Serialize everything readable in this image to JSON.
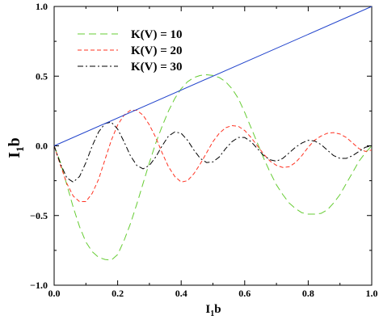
{
  "chart_data": {
    "type": "line",
    "xlabel": {
      "main": "I",
      "sub": "1",
      "tail": "b"
    },
    "ylabel": {
      "main": "I",
      "sub": "1",
      "tail": "b"
    },
    "xlim": [
      0,
      1
    ],
    "ylim": [
      -1,
      1
    ],
    "x_ticks": [
      "0.0",
      "0.2",
      "0.4",
      "0.6",
      "0.8",
      "1.0"
    ],
    "y_ticks": [
      "1.0",
      "0.5",
      "0.0",
      "−0.5",
      "−1.0"
    ],
    "grid": false,
    "legend_position": "top-left",
    "series": [
      {
        "name": "K(V) = 10",
        "color": "#66cc33",
        "dash": "dashed-long",
        "points": [
          [
            0,
            0
          ],
          [
            0.02,
            -0.12
          ],
          [
            0.04,
            -0.28
          ],
          [
            0.06,
            -0.44
          ],
          [
            0.08,
            -0.58
          ],
          [
            0.1,
            -0.69
          ],
          [
            0.12,
            -0.76
          ],
          [
            0.14,
            -0.8
          ],
          [
            0.16,
            -0.815
          ],
          [
            0.18,
            -0.82
          ],
          [
            0.2,
            -0.78
          ],
          [
            0.22,
            -0.68
          ],
          [
            0.24,
            -0.56
          ],
          [
            0.26,
            -0.42
          ],
          [
            0.28,
            -0.27
          ],
          [
            0.3,
            -0.12
          ],
          [
            0.32,
            0.02
          ],
          [
            0.34,
            0.14
          ],
          [
            0.36,
            0.25
          ],
          [
            0.38,
            0.34
          ],
          [
            0.4,
            0.41
          ],
          [
            0.42,
            0.46
          ],
          [
            0.44,
            0.49
          ],
          [
            0.46,
            0.505
          ],
          [
            0.48,
            0.51
          ],
          [
            0.5,
            0.505
          ],
          [
            0.52,
            0.49
          ],
          [
            0.54,
            0.46
          ],
          [
            0.56,
            0.41
          ],
          [
            0.58,
            0.34
          ],
          [
            0.6,
            0.24
          ],
          [
            0.62,
            0.13
          ],
          [
            0.64,
            0.02
          ],
          [
            0.66,
            -0.09
          ],
          [
            0.68,
            -0.19
          ],
          [
            0.7,
            -0.28
          ],
          [
            0.72,
            -0.35
          ],
          [
            0.74,
            -0.41
          ],
          [
            0.76,
            -0.45
          ],
          [
            0.78,
            -0.48
          ],
          [
            0.8,
            -0.49
          ],
          [
            0.82,
            -0.49
          ],
          [
            0.84,
            -0.485
          ],
          [
            0.86,
            -0.46
          ],
          [
            0.88,
            -0.41
          ],
          [
            0.9,
            -0.35
          ],
          [
            0.92,
            -0.27
          ],
          [
            0.94,
            -0.19
          ],
          [
            0.96,
            -0.11
          ],
          [
            0.98,
            -0.05
          ],
          [
            1.0,
            0
          ]
        ]
      },
      {
        "name": "K(V) = 20",
        "color": "#ff3322",
        "dash": "dashed-short",
        "points": [
          [
            0,
            0
          ],
          [
            0.02,
            -0.14
          ],
          [
            0.04,
            -0.27
          ],
          [
            0.06,
            -0.36
          ],
          [
            0.08,
            -0.4
          ],
          [
            0.1,
            -0.4
          ],
          [
            0.12,
            -0.34
          ],
          [
            0.14,
            -0.24
          ],
          [
            0.16,
            -0.1
          ],
          [
            0.18,
            0.04
          ],
          [
            0.2,
            0.15
          ],
          [
            0.22,
            0.22
          ],
          [
            0.24,
            0.255
          ],
          [
            0.26,
            0.255
          ],
          [
            0.28,
            0.22
          ],
          [
            0.3,
            0.15
          ],
          [
            0.32,
            0.06
          ],
          [
            0.34,
            -0.05
          ],
          [
            0.36,
            -0.15
          ],
          [
            0.38,
            -0.22
          ],
          [
            0.4,
            -0.26
          ],
          [
            0.42,
            -0.25
          ],
          [
            0.44,
            -0.2
          ],
          [
            0.46,
            -0.13
          ],
          [
            0.48,
            -0.05
          ],
          [
            0.5,
            0.03
          ],
          [
            0.52,
            0.09
          ],
          [
            0.54,
            0.13
          ],
          [
            0.56,
            0.145
          ],
          [
            0.58,
            0.14
          ],
          [
            0.6,
            0.11
          ],
          [
            0.62,
            0.06
          ],
          [
            0.64,
            0.0
          ],
          [
            0.66,
            -0.06
          ],
          [
            0.68,
            -0.11
          ],
          [
            0.7,
            -0.14
          ],
          [
            0.72,
            -0.155
          ],
          [
            0.74,
            -0.15
          ],
          [
            0.76,
            -0.12
          ],
          [
            0.78,
            -0.07
          ],
          [
            0.8,
            -0.01
          ],
          [
            0.82,
            0.04
          ],
          [
            0.84,
            0.07
          ],
          [
            0.86,
            0.09
          ],
          [
            0.88,
            0.095
          ],
          [
            0.9,
            0.085
          ],
          [
            0.92,
            0.06
          ],
          [
            0.94,
            0.02
          ],
          [
            0.96,
            -0.02
          ],
          [
            0.98,
            -0.04
          ],
          [
            1.0,
            -0.03
          ]
        ]
      },
      {
        "name": "K(V) = 30",
        "color": "#000000",
        "dash": "dash-dot",
        "points": [
          [
            0,
            0
          ],
          [
            0.02,
            -0.13
          ],
          [
            0.04,
            -0.23
          ],
          [
            0.06,
            -0.26
          ],
          [
            0.08,
            -0.22
          ],
          [
            0.1,
            -0.12
          ],
          [
            0.12,
            0.0
          ],
          [
            0.14,
            0.1
          ],
          [
            0.16,
            0.16
          ],
          [
            0.18,
            0.17
          ],
          [
            0.2,
            0.12
          ],
          [
            0.22,
            0.03
          ],
          [
            0.24,
            -0.07
          ],
          [
            0.26,
            -0.14
          ],
          [
            0.28,
            -0.165
          ],
          [
            0.3,
            -0.14
          ],
          [
            0.32,
            -0.08
          ],
          [
            0.34,
            0.0
          ],
          [
            0.36,
            0.07
          ],
          [
            0.38,
            0.1
          ],
          [
            0.4,
            0.09
          ],
          [
            0.42,
            0.04
          ],
          [
            0.44,
            -0.03
          ],
          [
            0.46,
            -0.09
          ],
          [
            0.48,
            -0.12
          ],
          [
            0.5,
            -0.115
          ],
          [
            0.52,
            -0.08
          ],
          [
            0.54,
            -0.02
          ],
          [
            0.56,
            0.03
          ],
          [
            0.58,
            0.06
          ],
          [
            0.6,
            0.06
          ],
          [
            0.62,
            0.03
          ],
          [
            0.64,
            -0.02
          ],
          [
            0.66,
            -0.07
          ],
          [
            0.68,
            -0.1
          ],
          [
            0.7,
            -0.11
          ],
          [
            0.72,
            -0.09
          ],
          [
            0.74,
            -0.05
          ],
          [
            0.76,
            -0.01
          ],
          [
            0.78,
            0.02
          ],
          [
            0.8,
            0.04
          ],
          [
            0.82,
            0.035
          ],
          [
            0.84,
            0.01
          ],
          [
            0.86,
            -0.03
          ],
          [
            0.88,
            -0.07
          ],
          [
            0.9,
            -0.09
          ],
          [
            0.92,
            -0.09
          ],
          [
            0.94,
            -0.07
          ],
          [
            0.96,
            -0.04
          ],
          [
            0.98,
            -0.01
          ],
          [
            1.0,
            0.0
          ]
        ]
      },
      {
        "name": "",
        "color": "#2244cc",
        "dash": "solid",
        "points": [
          [
            0,
            0
          ],
          [
            1,
            1
          ]
        ]
      }
    ]
  }
}
